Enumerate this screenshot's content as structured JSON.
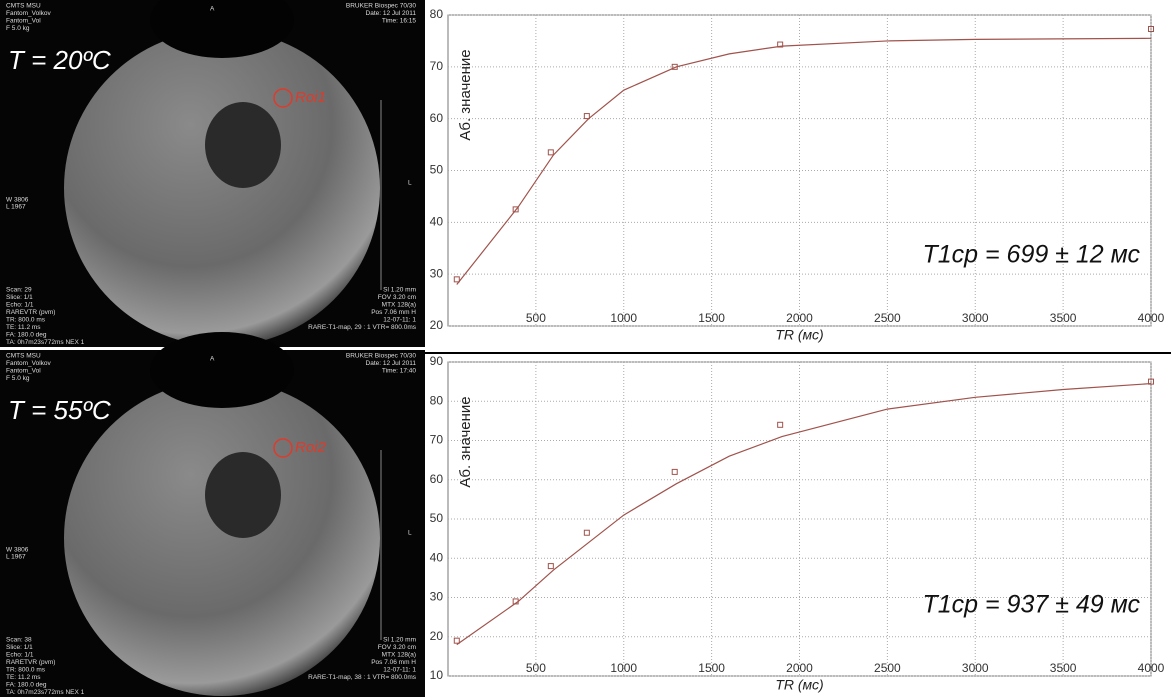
{
  "panels": [
    {
      "header_left": [
        "CMTS MSU",
        "Fantom_Volkov",
        "Fantom_Vol",
        "F 5.0 kg"
      ],
      "marker": "A",
      "header_right": [
        "BRUKER Biospec 70/30",
        "Date: 12 Jul 2011",
        "Time: 16:15"
      ],
      "temperature": "T = 20ºC",
      "roi": "Roi1",
      "window": [
        "W 3806",
        "L 1967"
      ],
      "side_marker": "L",
      "footer_left": [
        "Scan: 29",
        "Slice: 1/1",
        "Echo: 1/1",
        "RAREVTR (pvm)",
        "TR: 800.0 ms",
        "TE: 11.2 ms",
        "FA: 180.0 deg",
        "TA: 0h7m23s772ms NEX 1"
      ],
      "footer_right": [
        "Sl 1.20 mm",
        "FOV 3.20 cm",
        "MTX 128(a)",
        "Pos 7.06 mm H",
        "12-07-11: 1",
        "RARE-T1-map, 29 : 1 VTR= 800.0ms"
      ]
    },
    {
      "header_left": [
        "CMTS MSU",
        "Fantom_Volkov",
        "Fantom_Vol",
        "F 5.0 kg"
      ],
      "marker": "A",
      "header_right": [
        "BRUKER Biospec 70/30",
        "Date: 12 Jul 2011",
        "Time: 17:40"
      ],
      "temperature": "T = 55ºC",
      "roi": "Roi2",
      "window": [
        "W 3806",
        "L 1967"
      ],
      "side_marker": "L",
      "footer_left": [
        "Scan: 38",
        "Slice: 1/1",
        "Echo: 1/1",
        "RARETVR (pvm)",
        "TR: 800.0 ms",
        "TE: 11.2 ms",
        "FA: 180.0 deg",
        "TA: 0h7m23s772ms NEX 1"
      ],
      "footer_right": [
        "Sl 1.20 mm",
        "FOV 3.20 cm",
        "MTX 128(a)",
        "Pos 7.06 mm H",
        "12-07-11: 1",
        "RARE-T1-map, 38 : 1 VTR= 800.0ms"
      ]
    }
  ],
  "chart_data": [
    {
      "type": "scatter",
      "xlabel": "TR (мс)",
      "ylabel": "Аб. значение",
      "annotation": "T1cp = 699 ± 12 мс",
      "x": [
        50,
        385,
        585,
        790,
        1290,
        1890,
        4000
      ],
      "values": [
        29,
        42.5,
        53.5,
        60.5,
        70,
        74.3,
        77.3
      ],
      "color": "#a0524b",
      "fit": {
        "x": [
          50,
          400,
          600,
          800,
          1000,
          1300,
          1600,
          1900,
          2500,
          3000,
          4000
        ],
        "values": [
          28,
          43,
          53,
          60,
          65.5,
          70,
          72.5,
          74,
          75,
          75.3,
          75.5
        ]
      },
      "xlim": [
        0,
        4000
      ],
      "ylim": [
        20,
        80
      ],
      "xticks": [
        500,
        1000,
        1500,
        2000,
        2500,
        3000,
        3500,
        4000
      ],
      "yticks": [
        20,
        30,
        40,
        50,
        60,
        70,
        80
      ],
      "grid": true
    },
    {
      "type": "scatter",
      "xlabel": "TR (мс)",
      "ylabel": "Аб. значение",
      "annotation": "T1cp = 937 ± 49 мс",
      "x": [
        50,
        385,
        585,
        790,
        1290,
        1890,
        4000
      ],
      "values": [
        19,
        29,
        38,
        46.5,
        62,
        74,
        85
      ],
      "color": "#a0524b",
      "fit": {
        "x": [
          50,
          400,
          600,
          800,
          1000,
          1300,
          1600,
          1900,
          2500,
          3000,
          3500,
          4000
        ],
        "values": [
          18,
          29,
          37,
          44,
          51,
          59,
          66,
          71,
          78,
          81,
          83,
          84.5
        ]
      },
      "xlim": [
        0,
        4000
      ],
      "ylim": [
        10,
        90
      ],
      "xticks": [
        500,
        1000,
        1500,
        2000,
        2500,
        3000,
        3500,
        4000
      ],
      "yticks": [
        10,
        20,
        30,
        40,
        50,
        60,
        70,
        80,
        90
      ],
      "grid": true
    }
  ]
}
